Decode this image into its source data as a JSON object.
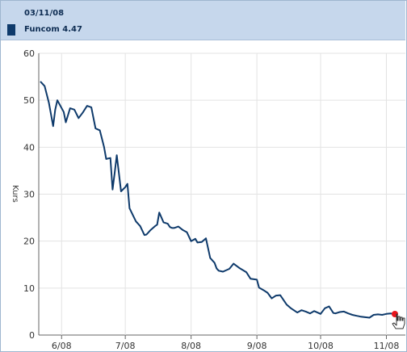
{
  "header": {
    "date": "03/11/08",
    "legend_label": "Funcom 4.47",
    "legend_color": "#0e3a6b"
  },
  "chart_data": {
    "type": "line",
    "title": "",
    "xlabel": "",
    "ylabel": "Kurs",
    "ylim": [
      0,
      60
    ],
    "yticks": [
      0,
      10,
      20,
      30,
      40,
      50,
      60
    ],
    "xticks": [
      "6/08",
      "7/08",
      "8/08",
      "9/08",
      "10/08",
      "11/08"
    ],
    "grid": true,
    "series_color": "#0e3a6b",
    "highlight_color": "#e8141c",
    "series": [
      {
        "name": "Funcom",
        "x": [
          "2008-05-22",
          "2008-05-24",
          "2008-05-26",
          "2008-05-28",
          "2008-05-29",
          "2008-05-30",
          "2008-06-02",
          "2008-06-03",
          "2008-06-05",
          "2008-06-07",
          "2008-06-09",
          "2008-06-11",
          "2008-06-13",
          "2008-06-15",
          "2008-06-17",
          "2008-06-19",
          "2008-06-21",
          "2008-06-22",
          "2008-06-24",
          "2008-06-25",
          "2008-06-26",
          "2008-06-27",
          "2008-06-29",
          "2008-07-01",
          "2008-07-02",
          "2008-07-03",
          "2008-07-06",
          "2008-07-08",
          "2008-07-10",
          "2008-07-11",
          "2008-07-13",
          "2008-07-15",
          "2008-07-16",
          "2008-07-17",
          "2008-07-19",
          "2008-07-21",
          "2008-07-22",
          "2008-07-23",
          "2008-07-24",
          "2008-07-26",
          "2008-07-28",
          "2008-07-30",
          "2008-08-01",
          "2008-08-03",
          "2008-08-04",
          "2008-08-06",
          "2008-08-08",
          "2008-08-10",
          "2008-08-12",
          "2008-08-13",
          "2008-08-14",
          "2008-08-16",
          "2008-08-19",
          "2008-08-21",
          "2008-08-24",
          "2008-08-27",
          "2008-08-29",
          "2008-09-01",
          "2008-09-02",
          "2008-09-04",
          "2008-09-06",
          "2008-09-08",
          "2008-09-10",
          "2008-09-12",
          "2008-09-15",
          "2008-09-17",
          "2008-09-20",
          "2008-09-22",
          "2008-09-24",
          "2008-09-26",
          "2008-09-28",
          "2008-10-01",
          "2008-10-03",
          "2008-10-05",
          "2008-10-07",
          "2008-10-08",
          "2008-10-10",
          "2008-10-12",
          "2008-10-14",
          "2008-10-16",
          "2008-10-18",
          "2008-10-19",
          "2008-10-20",
          "2008-10-22",
          "2008-10-24",
          "2008-10-26",
          "2008-10-28",
          "2008-10-30",
          "2008-11-01",
          "2008-11-03",
          "2008-11-05"
        ],
        "values": [
          54.0,
          53.0,
          49.5,
          44.5,
          48.0,
          50.0,
          47.5,
          45.3,
          48.3,
          48.0,
          46.2,
          47.4,
          48.8,
          48.5,
          44.0,
          43.6,
          40.0,
          37.5,
          37.7,
          31.0,
          34.5,
          38.3,
          30.6,
          31.5,
          32.2,
          27.0,
          24.2,
          23.2,
          21.3,
          21.4,
          22.4,
          23.2,
          23.5,
          26.1,
          24.0,
          23.7,
          23.0,
          22.8,
          22.8,
          23.1,
          22.4,
          21.9,
          20.0,
          20.5,
          19.7,
          19.8,
          20.6,
          16.4,
          15.4,
          14.2,
          13.7,
          13.5,
          14.1,
          15.2,
          14.2,
          13.4,
          12.0,
          11.8,
          10.1,
          9.6,
          9.0,
          7.8,
          8.4,
          8.5,
          6.5,
          5.7,
          4.8,
          5.3,
          5.0,
          4.6,
          5.1,
          4.5,
          5.7,
          6.1,
          4.7,
          4.6,
          4.9,
          5.0,
          4.6,
          4.3,
          4.1,
          4.0,
          3.9,
          3.8,
          3.7,
          4.3,
          4.4,
          4.3,
          4.5,
          4.6,
          4.47
        ]
      }
    ]
  }
}
